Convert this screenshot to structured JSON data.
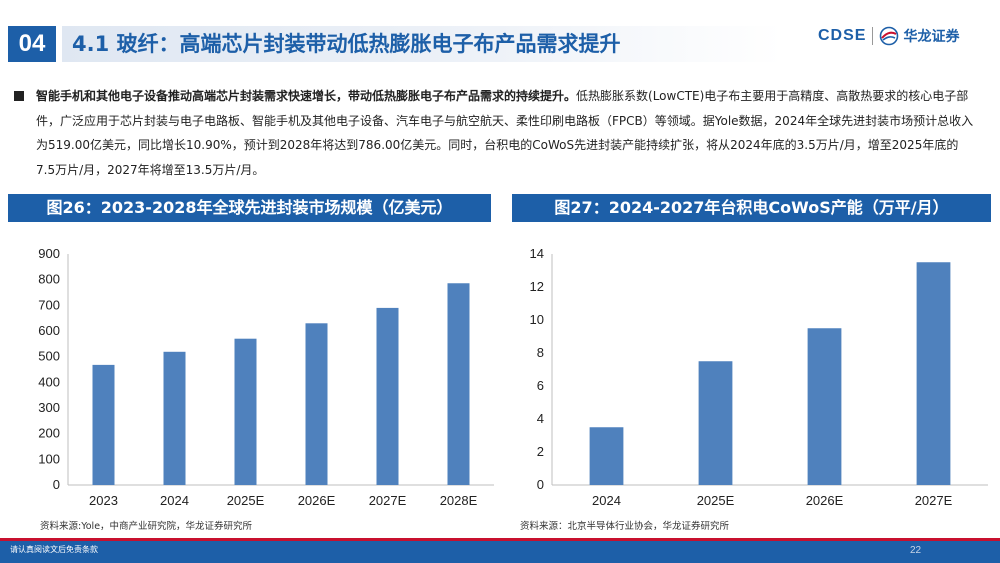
{
  "header": {
    "section_number": "04",
    "title": "4.1 玻纤：高端芯片封装带动低热膨胀电子布产品需求提升",
    "logo_text": "CDSE",
    "logo_cn": "华龙证券",
    "logo_icon": "hualong-logo-icon",
    "accent_color": "#1d5fa8"
  },
  "body": {
    "lead": "智能手机和其他电子设备推动高端芯片封装需求快速增长，带动低热膨胀电子布产品需求的持续提升。",
    "text": "低热膨胀系数(LowCTE)电子布主要用于高精度、高散热要求的核心电子部件，广泛应用于芯片封装与电子电路板、智能手机及其他电子设备、汽车电子与航空航天、柔性印刷电路板（FPCB）等领域。据Yole数据，2024年全球先进封装市场预计总收入为519.00亿美元，同比增长10.90%，预计到2028年将达到786.00亿美元。同时，台积电的CoWoS先进封装产能持续扩张，将从2024年底的3.5万片/月，增至2025年底的7.5万片/月，2027年将增至13.5万片/月。"
  },
  "charts": [
    {
      "heading": "图26：2023-2028年全球先进封装市场规模（亿美元）",
      "source": "资料来源:Yole，中商产业研究院，华龙证券研究所"
    },
    {
      "heading": "图27：2024-2027年台积电CoWoS产能（万平/月）",
      "source": "资料来源：北京半导体行业协会，华龙证券研究所"
    }
  ],
  "chart_data": [
    {
      "type": "bar",
      "categories": [
        "2023",
        "2024",
        "2025E",
        "2026E",
        "2027E",
        "2028E"
      ],
      "values": [
        468,
        519,
        570,
        630,
        690,
        786
      ],
      "ylim": [
        0,
        900
      ],
      "yticks": [
        0,
        100,
        200,
        300,
        400,
        500,
        600,
        700,
        800,
        900
      ],
      "color": "#4f81bd",
      "grid": false
    },
    {
      "type": "bar",
      "categories": [
        "2024",
        "2025E",
        "2026E",
        "2027E"
      ],
      "values": [
        3.5,
        7.5,
        9.5,
        13.5
      ],
      "ylim": [
        0,
        14
      ],
      "yticks": [
        0,
        2,
        4,
        6,
        8,
        10,
        12,
        14
      ],
      "color": "#4f81bd",
      "grid": false
    }
  ],
  "footer": {
    "disclaimer": "请认真阅读文后免责条款",
    "page_number": "22"
  }
}
